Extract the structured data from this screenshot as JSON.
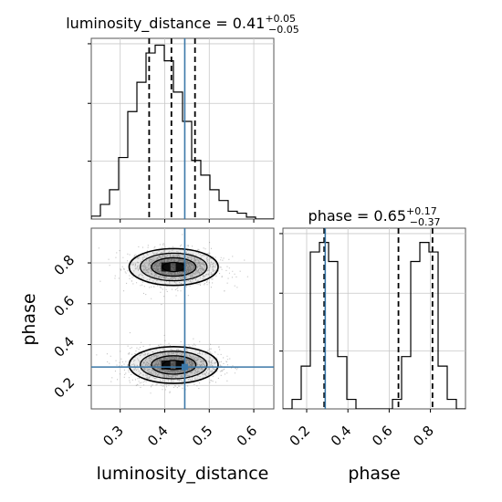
{
  "chart_data": {
    "type": "corner",
    "parameters": [
      "luminosity_distance",
      "phase"
    ],
    "colors": {
      "truth": "#3b78a8",
      "hist": "#000000",
      "density": "#000000",
      "points": "#7f7f7f"
    },
    "grid": true,
    "titles": {
      "luminosity_distance": {
        "name": "luminosity_distance",
        "value": "0.41",
        "plus": "+0.05",
        "minus": "−0.05"
      },
      "phase": {
        "name": "phase",
        "value": "0.65",
        "plus": "+0.17",
        "minus": "−0.37"
      }
    },
    "truths": {
      "luminosity_distance": 0.445,
      "phase": 0.29
    },
    "luminosity_distance": {
      "range": [
        0.235,
        0.645
      ],
      "ticks": [
        0.3,
        0.4,
        0.5,
        0.6
      ],
      "tick_labels": [
        "0.3",
        "0.4",
        "0.5",
        "0.6"
      ],
      "quantiles": [
        0.365,
        0.415,
        0.468
      ],
      "hist_edges": [
        0.235,
        0.2555,
        0.276,
        0.2965,
        0.317,
        0.3375,
        0.358,
        0.3785,
        0.399,
        0.4195,
        0.44,
        0.4605,
        0.481,
        0.5015,
        0.522,
        0.5425,
        0.563,
        0.5835,
        0.604,
        0.6245,
        0.645
      ],
      "hist_counts": [
        3,
        15,
        30,
        63,
        110,
        140,
        170,
        178,
        162,
        130,
        100,
        60,
        45,
        30,
        19,
        8,
        6,
        2,
        0,
        0
      ],
      "hist_ymax": 185
    },
    "phase": {
      "range": [
        0.085,
        0.97
      ],
      "ticks": [
        0.2,
        0.4,
        0.6,
        0.8
      ],
      "tick_labels": [
        "0.2",
        "0.4",
        "0.6",
        "0.8"
      ],
      "quantiles": [
        0.285,
        0.645,
        0.81
      ],
      "hist_edges": [
        0.085,
        0.12925,
        0.1735,
        0.21775,
        0.262,
        0.30625,
        0.3505,
        0.39475,
        0.439,
        0.48325,
        0.5275,
        0.57175,
        0.616,
        0.66025,
        0.7045,
        0.74875,
        0.793,
        0.83725,
        0.8815,
        0.92575,
        0.97
      ],
      "hist_counts": [
        0,
        10,
        45,
        165,
        175,
        155,
        55,
        10,
        0,
        0,
        0,
        0,
        10,
        55,
        155,
        175,
        165,
        45,
        10,
        0
      ],
      "hist_ymax": 190
    },
    "joint_2d": {
      "x": "luminosity_distance",
      "y": "phase",
      "modes": [
        {
          "center": [
            0.42,
            0.78
          ],
          "sigma": [
            0.05,
            0.045
          ],
          "weight": 0.5
        },
        {
          "center": [
            0.42,
            0.3
          ],
          "sigma": [
            0.05,
            0.045
          ],
          "weight": 0.5
        }
      ],
      "levels_sigma": [
        0.5,
        1.0,
        1.5,
        2.0
      ]
    }
  }
}
